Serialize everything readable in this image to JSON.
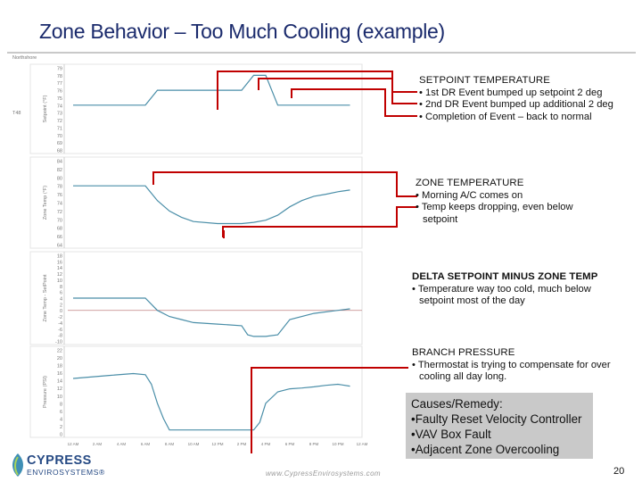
{
  "slide": {
    "title": "Zone Behavior – Too Much Cooling (example)",
    "page_number": "20",
    "url": "www.CypressEnvirosystems.com",
    "logo_text": "CYPRESS",
    "logo_sub": "ENVIROSYSTEMS®"
  },
  "colors": {
    "title": "#1a2a6c",
    "callout_line": "#c00000",
    "trend_line": "#4a8ea8",
    "reference_line": "#c08080"
  },
  "chart_data": [
    {
      "type": "line",
      "title": "Northshore",
      "series_label": "T48",
      "ylabel": "Setpoint (°F)",
      "yticks": [
        "79",
        "78",
        "77",
        "76",
        "75",
        "74",
        "73",
        "72",
        "71",
        "70",
        "69",
        "68"
      ],
      "ylim": [
        68,
        79
      ],
      "x": [
        0,
        6,
        7,
        14,
        15,
        16,
        17,
        23
      ],
      "values": [
        74,
        74,
        76,
        76,
        78,
        78,
        74,
        74
      ]
    },
    {
      "type": "line",
      "ylabel": "Zone Temp (°F)",
      "yticks": [
        "84",
        "82",
        "80",
        "78",
        "76",
        "74",
        "72",
        "70",
        "68",
        "66",
        "64"
      ],
      "ylim": [
        64,
        84
      ],
      "x": [
        0,
        6,
        7,
        8,
        9,
        10,
        12,
        14,
        15,
        16,
        17,
        18,
        19,
        20,
        21,
        22,
        23
      ],
      "values": [
        78,
        78,
        74.5,
        72,
        70.5,
        69.5,
        69,
        69,
        69.3,
        69.8,
        71,
        73,
        74.5,
        75.5,
        76,
        76.6,
        77
      ]
    },
    {
      "type": "line",
      "ylabel": "Zone Temp - SetPoint",
      "yticks": [
        "18",
        "16",
        "14",
        "12",
        "10",
        "8",
        "6",
        "4",
        "2",
        "0",
        "-2",
        "-4",
        "-6",
        "-8",
        "-10"
      ],
      "ylim": [
        -10,
        18
      ],
      "x": [
        0,
        6,
        7,
        8,
        9,
        10,
        12,
        14,
        14.5,
        15,
        16,
        17,
        18,
        20,
        23
      ],
      "values": [
        4,
        4,
        0,
        -2,
        -3,
        -4,
        -4.5,
        -5,
        -8,
        -8.5,
        -8.5,
        -8,
        -3,
        -1,
        0.5
      ]
    },
    {
      "type": "line",
      "ylabel": "Pressure (PSI)",
      "yticks": [
        "22",
        "20",
        "18",
        "16",
        "14",
        "12",
        "10",
        "8",
        "6",
        "4",
        "2",
        "0"
      ],
      "ylim": [
        0,
        22
      ],
      "x": [
        0,
        3,
        5,
        6,
        6.5,
        7,
        7.5,
        8,
        10,
        13,
        15,
        15.5,
        16,
        17,
        18,
        19,
        20,
        21,
        22,
        23
      ],
      "values": [
        14.5,
        15.3,
        15.8,
        15.5,
        13,
        8,
        4,
        1,
        1,
        1,
        1,
        3,
        8,
        11,
        11.8,
        12,
        12.3,
        12.7,
        13,
        12.5
      ]
    }
  ],
  "x_tick_labels": [
    "12 AM",
    "2 AM",
    "4 AM",
    "6 AM",
    "8 AM",
    "10 AM",
    "12 PM",
    "2 PM",
    "4 PM",
    "6 PM",
    "8 PM",
    "10 PM",
    "12 AM"
  ],
  "notes": {
    "setpoint": {
      "heading": "SETPOINT TEMPERATURE",
      "items": [
        "1st DR Event bumped up setpoint 2 deg",
        "2nd DR Event bumped up additional 2 deg",
        "Completion of Event – back to normal"
      ]
    },
    "zone": {
      "heading": "ZONE TEMPERATURE",
      "items": [
        "Morning A/C comes on",
        "Temp keeps dropping, even below setpoint"
      ]
    },
    "delta": {
      "heading": "DELTA SETPOINT MINUS ZONE TEMP",
      "items": [
        "Temperature way too cold, much below setpoint most of the day"
      ]
    },
    "branch": {
      "heading": "BRANCH PRESSURE",
      "items": [
        "Thermostat is trying to compensate for over cooling all day long."
      ]
    }
  },
  "causes": {
    "heading": "Causes/Remedy:",
    "items": [
      "•Faulty Reset Velocity Controller",
      "•VAV Box Fault",
      "•Adjacent Zone Overcooling"
    ]
  }
}
